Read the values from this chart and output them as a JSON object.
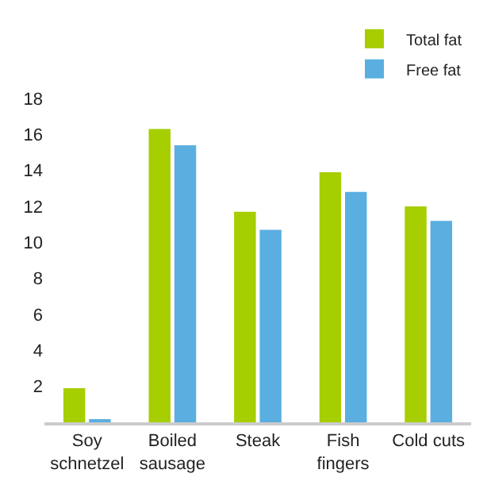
{
  "chart_data": {
    "type": "bar",
    "categories": [
      "Soy\nschnetzel",
      "Boiled\nsausage",
      "Steak",
      "Fish\nfingers",
      "Cold cuts"
    ],
    "series": [
      {
        "name": "Total fat",
        "color": "#a6ce00",
        "values": [
          1.9,
          16.3,
          11.7,
          13.9,
          12.0
        ]
      },
      {
        "name": "Free fat",
        "color": "#5aafe0",
        "values": [
          0.1,
          15.4,
          10.7,
          12.8,
          11.2
        ]
      }
    ],
    "ylim": [
      0,
      18
    ],
    "yticks": [
      2,
      4,
      6,
      8,
      10,
      12,
      14,
      16,
      18
    ],
    "legend": "top right"
  }
}
